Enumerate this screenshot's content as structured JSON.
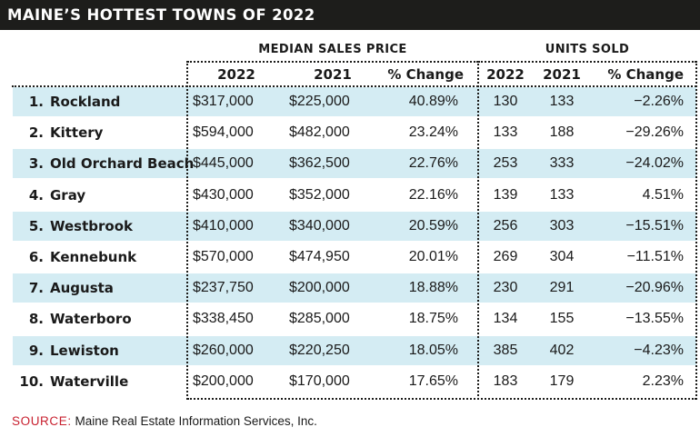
{
  "title": "MAINE’S HOTTEST TOWNS OF 2022",
  "headers": {
    "price_group": "MEDIAN SALES PRICE",
    "units_group": "UNITS SOLD",
    "price_2022": "2022",
    "price_2021": "2021",
    "price_change": "% Change",
    "units_2022": "2022",
    "units_2021": "2021",
    "units_change": "% Change"
  },
  "colors": {
    "title_bar": "#1d1d1b",
    "row_shade": "#d4ecf3",
    "source_label": "#c8202f"
  },
  "rows": [
    {
      "rank": "1.",
      "town": "Rockland",
      "price_2022": "$317,000",
      "price_2021": "$225,000",
      "price_change": "40.89%",
      "units_2022": "130",
      "units_2021": "133",
      "units_change": "−2.26%"
    },
    {
      "rank": "2.",
      "town": "Kittery",
      "price_2022": "$594,000",
      "price_2021": "$482,000",
      "price_change": "23.24%",
      "units_2022": "133",
      "units_2021": "188",
      "units_change": "−29.26%"
    },
    {
      "rank": "3.",
      "town": "Old Orchard Beach",
      "price_2022": "$445,000",
      "price_2021": "$362,500",
      "price_change": "22.76%",
      "units_2022": "253",
      "units_2021": "333",
      "units_change": "−24.02%"
    },
    {
      "rank": "4.",
      "town": "Gray",
      "price_2022": "$430,000",
      "price_2021": "$352,000",
      "price_change": "22.16%",
      "units_2022": "139",
      "units_2021": "133",
      "units_change": "4.51%"
    },
    {
      "rank": "5.",
      "town": "Westbrook",
      "price_2022": "$410,000",
      "price_2021": "$340,000",
      "price_change": "20.59%",
      "units_2022": "256",
      "units_2021": "303",
      "units_change": "−15.51%"
    },
    {
      "rank": "6.",
      "town": "Kennebunk",
      "price_2022": "$570,000",
      "price_2021": "$474,950",
      "price_change": "20.01%",
      "units_2022": "269",
      "units_2021": "304",
      "units_change": "−11.51%"
    },
    {
      "rank": "7.",
      "town": "Augusta",
      "price_2022": "$237,750",
      "price_2021": "$200,000",
      "price_change": "18.88%",
      "units_2022": "230",
      "units_2021": "291",
      "units_change": "−20.96%"
    },
    {
      "rank": "8.",
      "town": "Waterboro",
      "price_2022": "$338,450",
      "price_2021": "$285,000",
      "price_change": "18.75%",
      "units_2022": "134",
      "units_2021": "155",
      "units_change": "−13.55%"
    },
    {
      "rank": "9.",
      "town": "Lewiston",
      "price_2022": "$260,000",
      "price_2021": "$220,250",
      "price_change": "18.05%",
      "units_2022": "385",
      "units_2021": "402",
      "units_change": "−4.23%"
    },
    {
      "rank": "10.",
      "town": "Waterville",
      "price_2022": "$200,000",
      "price_2021": "$170,000",
      "price_change": "17.65%",
      "units_2022": "183",
      "units_2021": "179",
      "units_change": "2.23%"
    }
  ],
  "source": {
    "label": "SOURCE:",
    "text": "Maine Real Estate Information Services, Inc."
  }
}
